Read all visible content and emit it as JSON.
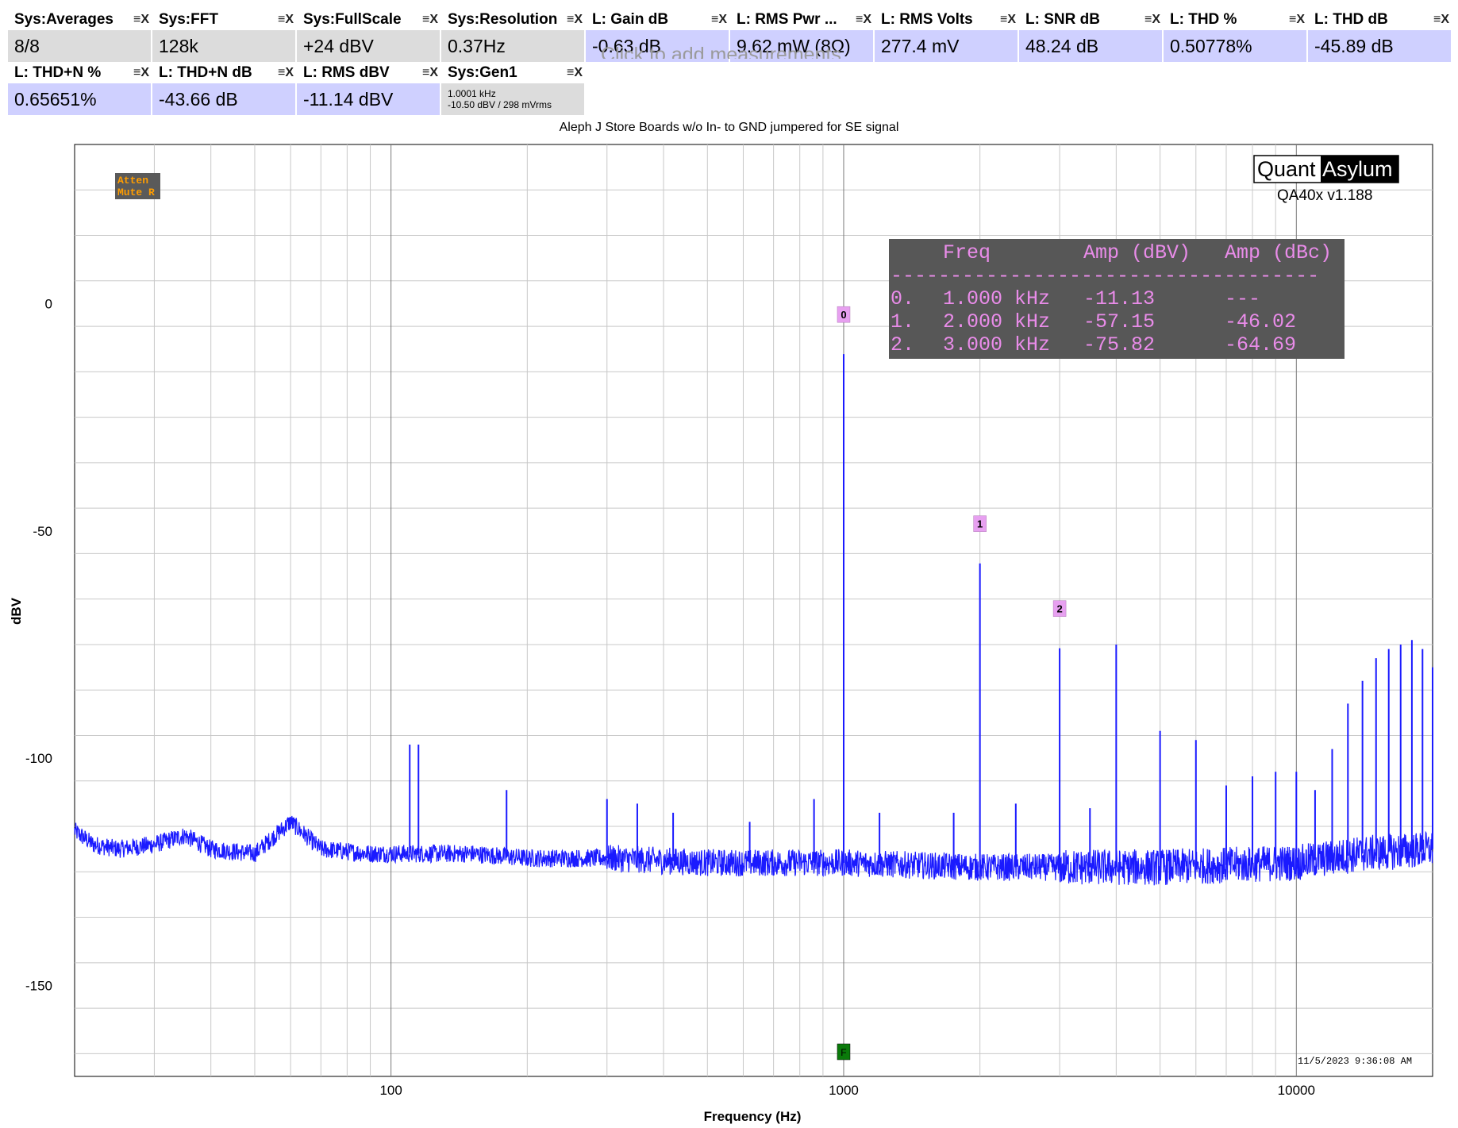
{
  "measurements": [
    {
      "title": "Sys:Averages",
      "value": "8/8",
      "kind": "sys"
    },
    {
      "title": "Sys:FFT",
      "value": "128k",
      "kind": "sys"
    },
    {
      "title": "Sys:FullScale",
      "value": "+24 dBV",
      "kind": "sys"
    },
    {
      "title": "Sys:Resolution",
      "value": "0.37Hz",
      "kind": "sys"
    },
    {
      "title": "L: Gain dB",
      "value": "-0.63 dB",
      "kind": "l"
    },
    {
      "title": "L: RMS Pwr ...",
      "value": "9.62 mW (8Ω)",
      "kind": "l"
    },
    {
      "title": "L: RMS Volts",
      "value": "277.4 mV",
      "kind": "l"
    },
    {
      "title": "L: SNR dB",
      "value": "48.24 dB",
      "kind": "l"
    },
    {
      "title": "L: THD %",
      "value": "0.50778%",
      "kind": "l"
    },
    {
      "title": "L: THD dB",
      "value": "-45.89 dB",
      "kind": "l"
    },
    {
      "title": "L: THD+N %",
      "value": "0.65651%",
      "kind": "l"
    },
    {
      "title": "L: THD+N dB",
      "value": "-43.66 dB",
      "kind": "l"
    },
    {
      "title": "L: RMS dBV",
      "value": "-11.14 dBV",
      "kind": "l"
    },
    {
      "title": "Sys:Gen1",
      "line1": "1.0001 kHz",
      "line2": "-10.50 dBV  / 298 mVrms",
      "kind": "gen"
    }
  ],
  "tile_controls": {
    "menu": "≡",
    "close": "X"
  },
  "add_hint": "Click to add measurements",
  "graph": {
    "title": "Aleph J  Store Boards w/o In- to GND jumpered for SE signal",
    "atten_label_1": "Atten",
    "atten_label_2": "Mute R",
    "brand_left": "Quant",
    "brand_right": "Asylum",
    "version": "QA40x v1.188",
    "timestamp": "11/5/2023 9:36:08 AM",
    "fundamental_marker": "F",
    "harmonic_table": {
      "header": [
        "Freq",
        "Amp (dBV)",
        "Amp (dBc)"
      ],
      "separator": "------------------------------------",
      "rows": [
        [
          "0.",
          "1.000 kHz",
          "-11.13",
          "---"
        ],
        [
          "1.",
          "2.000 kHz",
          "-57.15",
          "-46.02"
        ],
        [
          "2.",
          "3.000 kHz",
          "-75.82",
          "-64.69"
        ]
      ]
    }
  },
  "chart_data": {
    "type": "line",
    "title": "Aleph J  Store Boards w/o In- to GND jumpered for SE signal",
    "xlabel": "Frequency (Hz)",
    "ylabel": "dBV",
    "x_scale": "log",
    "xlim": [
      20,
      20000
    ],
    "ylim": [
      -170,
      35
    ],
    "grid": true,
    "x_ticks": [
      100,
      1000,
      10000
    ],
    "x_tick_labels": [
      "100",
      "1000",
      "10000"
    ],
    "y_ticks": [
      0,
      -50,
      -100,
      -150
    ],
    "y_tick_labels": [
      "0",
      "-50",
      "-100",
      "-150"
    ],
    "series": [
      {
        "color": "#1a1aff",
        "noise_floor": [
          [
            20,
            -116
          ],
          [
            22,
            -119
          ],
          [
            25,
            -120
          ],
          [
            30,
            -119
          ],
          [
            35,
            -117
          ],
          [
            40,
            -120
          ],
          [
            50,
            -121
          ],
          [
            60,
            -114
          ],
          [
            70,
            -120
          ],
          [
            90,
            -121
          ],
          [
            100,
            -121
          ],
          [
            150,
            -121
          ],
          [
            200,
            -122
          ],
          [
            300,
            -122
          ],
          [
            500,
            -123
          ],
          [
            1000,
            -123
          ],
          [
            2000,
            -124
          ],
          [
            5000,
            -124
          ],
          [
            10000,
            -123
          ],
          [
            14000,
            -121
          ],
          [
            20000,
            -120
          ]
        ],
        "spurs": [
          [
            60,
            -113
          ],
          [
            110,
            -97
          ],
          [
            115,
            -97
          ],
          [
            180,
            -107
          ],
          [
            300,
            -109
          ],
          [
            350,
            -110
          ],
          [
            420,
            -112
          ],
          [
            620,
            -114
          ],
          [
            860,
            -109
          ],
          [
            1000,
            -11.13
          ],
          [
            1200,
            -112
          ],
          [
            1750,
            -112
          ],
          [
            2000,
            -57.15
          ],
          [
            2400,
            -110
          ],
          [
            3000,
            -75.82
          ],
          [
            3500,
            -111
          ],
          [
            4000,
            -75
          ],
          [
            5000,
            -94
          ],
          [
            6000,
            -96
          ],
          [
            7000,
            -106
          ],
          [
            8000,
            -104
          ],
          [
            9000,
            -103
          ],
          [
            10000,
            -103
          ],
          [
            11000,
            -107
          ],
          [
            12000,
            -98
          ],
          [
            13000,
            -88
          ],
          [
            14000,
            -83
          ],
          [
            15000,
            -78
          ],
          [
            16000,
            -76
          ],
          [
            17000,
            -75
          ],
          [
            18000,
            -74
          ],
          [
            19000,
            -76
          ],
          [
            20000,
            -80
          ]
        ]
      }
    ],
    "markers": [
      {
        "label": "0",
        "x": 1000,
        "y": -11.13
      },
      {
        "label": "1",
        "x": 2000,
        "y": -57.15
      },
      {
        "label": "2",
        "x": 3000,
        "y": -75.82
      }
    ]
  }
}
